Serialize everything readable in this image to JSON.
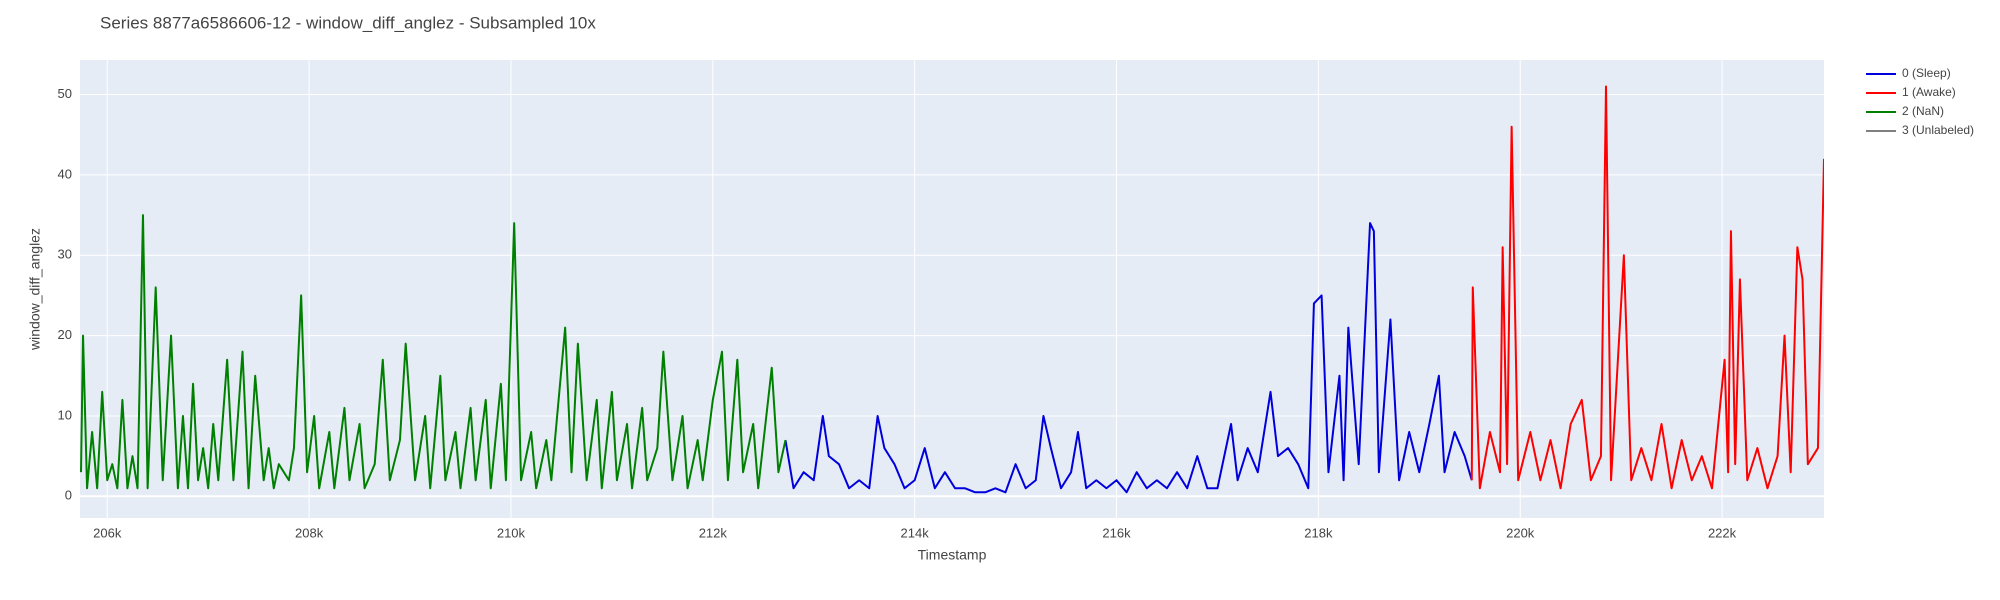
{
  "chart_data": {
    "type": "line",
    "title": "Series 8877a6586606-12 - window_diff_anglez - Subsampled 10x",
    "x_label": "Timestamp",
    "y_label": "window_diff_anglez",
    "xlim": [
      205730,
      223010
    ],
    "ylim": [
      -2.7,
      54.3
    ],
    "xticks": [
      {
        "value": 206000,
        "label": "206k"
      },
      {
        "value": 208000,
        "label": "208k"
      },
      {
        "value": 210000,
        "label": "210k"
      },
      {
        "value": 212000,
        "label": "212k"
      },
      {
        "value": 214000,
        "label": "214k"
      },
      {
        "value": 216000,
        "label": "216k"
      },
      {
        "value": 218000,
        "label": "218k"
      },
      {
        "value": 220000,
        "label": "220k"
      },
      {
        "value": 222000,
        "label": "222k"
      }
    ],
    "yticks": [
      0,
      10,
      20,
      30,
      40,
      50
    ],
    "grid": true,
    "legend": "right",
    "series": [
      {
        "name": "0 (Sleep)",
        "color": "#0000dd",
        "x": [
          212720,
          212800,
          212900,
          213000,
          213090,
          213150,
          213250,
          213350,
          213450,
          213550,
          213633,
          213700,
          213800,
          213900,
          214000,
          214100,
          214200,
          214300,
          214400,
          214500,
          214600,
          214700,
          214800,
          214900,
          215000,
          215100,
          215200,
          215276,
          215350,
          215450,
          215550,
          215618,
          215700,
          215800,
          215900,
          216000,
          216100,
          216200,
          216300,
          216400,
          216500,
          216600,
          216700,
          216800,
          216900,
          217000,
          217135,
          217200,
          217300,
          217400,
          217526,
          217600,
          217700,
          217800,
          217900,
          217956,
          218032,
          218100,
          218209,
          218250,
          218297,
          218400,
          218512,
          218550,
          218600,
          218714,
          218800,
          218900,
          219000,
          219100,
          219194,
          219250,
          219350,
          219450,
          219520
        ],
        "values": [
          7,
          1,
          3,
          2,
          10,
          5,
          4,
          1,
          2,
          1,
          10,
          6,
          4,
          1,
          2,
          6,
          1,
          3,
          1,
          1,
          0.5,
          0.5,
          1,
          0.5,
          4,
          1,
          2,
          10,
          6,
          1,
          3,
          8,
          1,
          2,
          1,
          2,
          0.5,
          3,
          1,
          2,
          1,
          3,
          1,
          5,
          1,
          1,
          9,
          2,
          6,
          3,
          13,
          5,
          6,
          4,
          1,
          24,
          25,
          3,
          15,
          2,
          21,
          4,
          34,
          33,
          3,
          22,
          2,
          8,
          3,
          9,
          15,
          3,
          8,
          5,
          2
        ]
      },
      {
        "name": "1 (Awake)",
        "color": "#ff0000",
        "x": [
          219520,
          219530,
          219600,
          219700,
          219800,
          219826,
          219870,
          219915,
          219980,
          220100,
          220200,
          220300,
          220400,
          220500,
          220610,
          220700,
          220800,
          220850,
          220900,
          221027,
          221100,
          221200,
          221300,
          221400,
          221500,
          221600,
          221700,
          221800,
          221900,
          222025,
          222060,
          222088,
          222130,
          222177,
          222250,
          222350,
          222450,
          222550,
          222619,
          222680,
          222746,
          222797,
          222850,
          222950,
          223010
        ],
        "values": [
          2,
          26,
          1,
          8,
          3,
          31,
          4,
          46,
          2,
          8,
          2,
          7,
          1,
          9,
          12,
          2,
          5,
          51,
          2,
          30,
          2,
          6,
          2,
          9,
          1,
          7,
          2,
          5,
          1,
          17,
          3,
          33,
          4,
          27,
          2,
          6,
          1,
          5,
          20,
          3,
          31,
          27,
          4,
          6,
          42
        ]
      },
      {
        "name": "2 (NaN)",
        "color": "#008000",
        "x": [
          205740,
          205760,
          205800,
          205850,
          205900,
          205950,
          206000,
          206050,
          206100,
          206150,
          206200,
          206250,
          206300,
          206354,
          206400,
          206480,
          206550,
          206632,
          206700,
          206750,
          206800,
          206850,
          206900,
          206950,
          207000,
          207050,
          207100,
          207188,
          207250,
          207340,
          207400,
          207466,
          207550,
          207600,
          207650,
          207700,
          207800,
          207850,
          207921,
          207980,
          208050,
          208100,
          208200,
          208250,
          208350,
          208400,
          208500,
          208550,
          208650,
          208730,
          208800,
          208900,
          208957,
          209050,
          209150,
          209200,
          209300,
          209350,
          209450,
          209500,
          209600,
          209650,
          209750,
          209800,
          209900,
          209950,
          210032,
          210100,
          210200,
          210250,
          210350,
          210400,
          210537,
          210600,
          210663,
          210750,
          210850,
          210900,
          211000,
          211050,
          211150,
          211200,
          211300,
          211350,
          211450,
          211510,
          211600,
          211700,
          211750,
          211850,
          211900,
          212000,
          212091,
          212150,
          212243,
          212300,
          212400,
          212450,
          212584,
          212650,
          212720
        ],
        "values": [
          3,
          20,
          1,
          8,
          1,
          13,
          2,
          4,
          1,
          12,
          1,
          5,
          1,
          35,
          1,
          26,
          2,
          20,
          1,
          10,
          1,
          14,
          2,
          6,
          1,
          9,
          2,
          17,
          2,
          18,
          1,
          15,
          2,
          6,
          1,
          4,
          2,
          6,
          25,
          3,
          10,
          1,
          8,
          1,
          11,
          2,
          9,
          1,
          4,
          17,
          2,
          7,
          19,
          2,
          10,
          1,
          15,
          2,
          8,
          1,
          11,
          2,
          12,
          1,
          14,
          2,
          34,
          2,
          8,
          1,
          7,
          2,
          21,
          3,
          19,
          2,
          12,
          1,
          13,
          2,
          9,
          1,
          11,
          2,
          6,
          18,
          2,
          10,
          1,
          7,
          2,
          12,
          18,
          2,
          17,
          3,
          9,
          1,
          16,
          3,
          7
        ]
      },
      {
        "name": "3 (Unlabeled)",
        "color": "#808080",
        "x": [],
        "values": []
      }
    ]
  }
}
